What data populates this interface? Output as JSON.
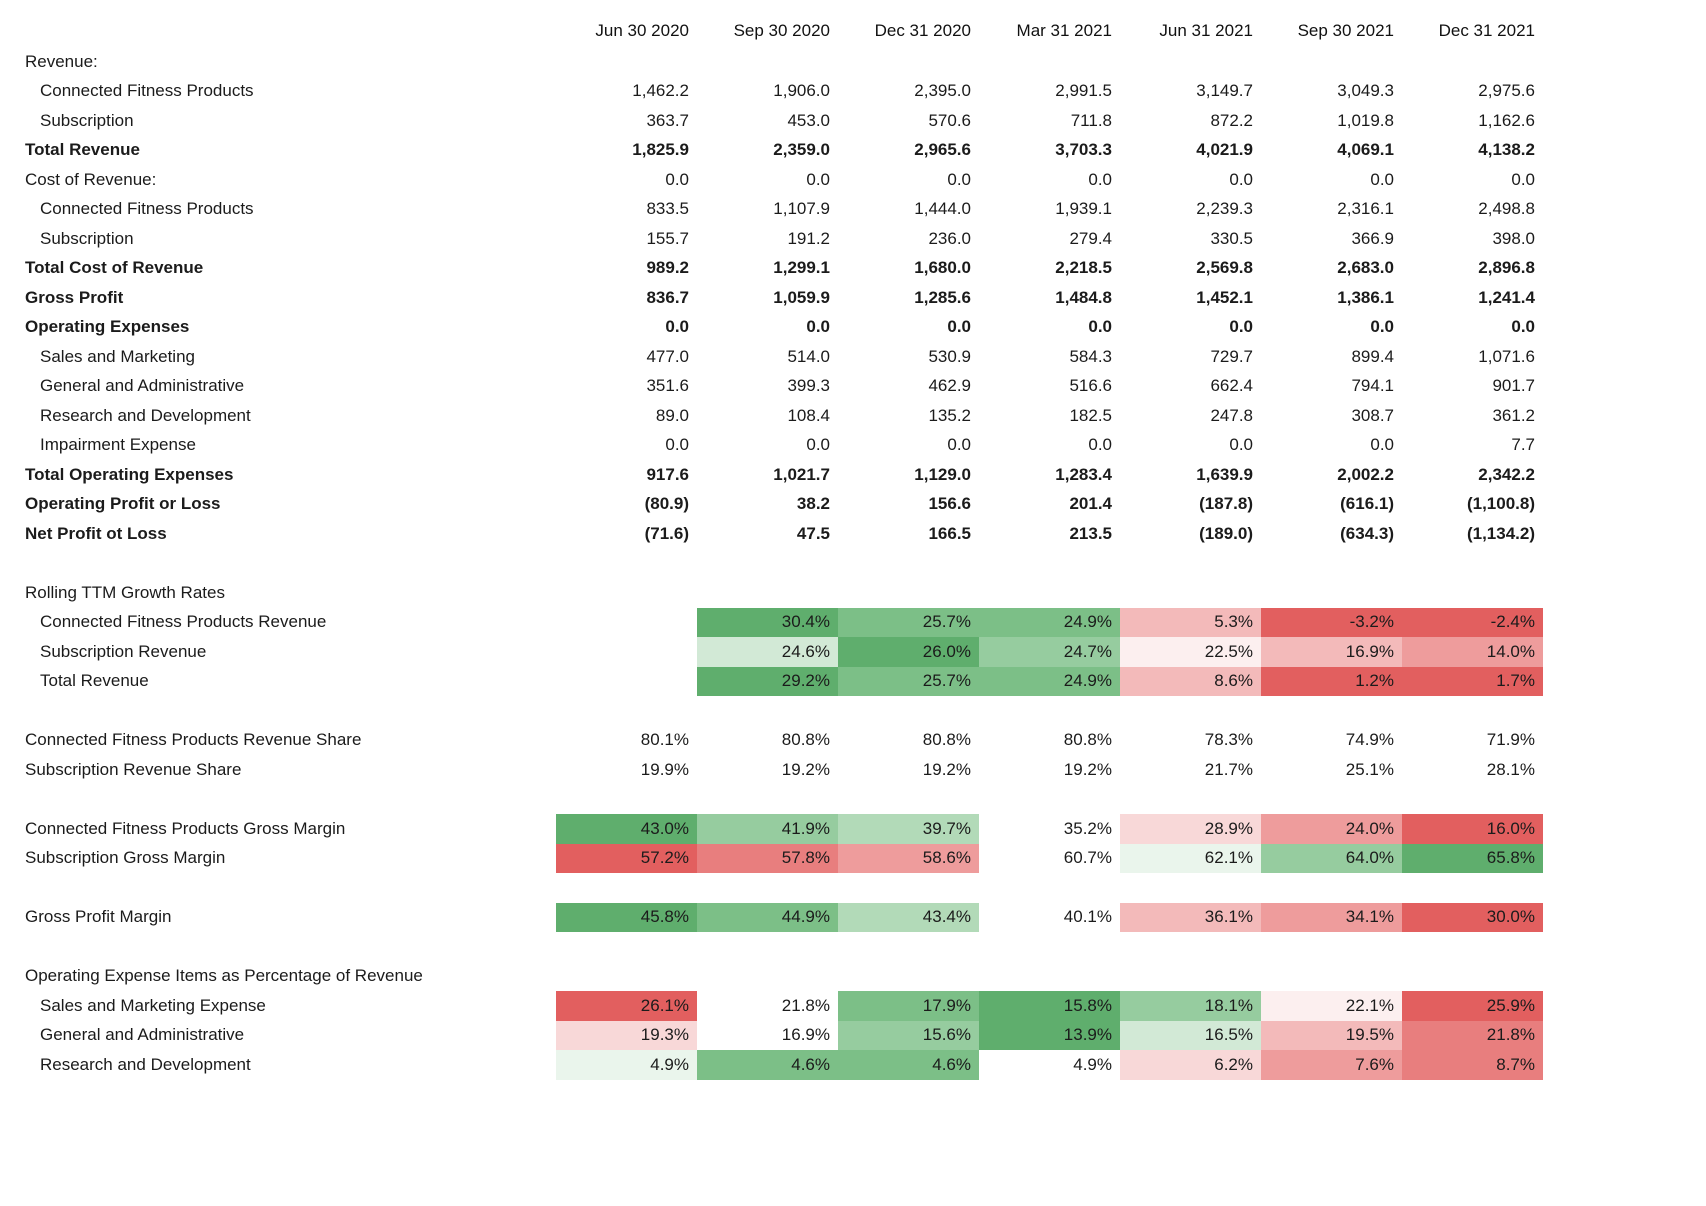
{
  "chart_data": {
    "type": "table",
    "title": "Quarterly financial statement with rolling TTM growth and margin heatmap",
    "heatmap_palette": {
      "green_strong": "#5fae6d",
      "green_medium": "#7cbf87",
      "green_light": "#96cc9f",
      "green_lighter": "#b2dab8",
      "green_pale": "#d2e9d6",
      "green_faint": "#eaf5ec",
      "red_strong": "#e25f5f",
      "red_medium": "#e87e7e",
      "red_light": "#ee9c9c",
      "red_lighter": "#f3baba",
      "red_pale": "#f8d8d8",
      "red_faint": "#fcefef"
    },
    "columns": [
      "Jun 30 2020",
      "Sep 30 2020",
      "Dec 31 2020",
      "Mar 31 2021",
      "Jun 31 2021",
      "Sep 30 2021",
      "Dec 31 2021"
    ],
    "rows": [
      {
        "label": "Revenue:",
        "style": "plain",
        "values": [
          "",
          "",
          "",
          "",
          "",
          "",
          ""
        ]
      },
      {
        "label": "Connected Fitness Products",
        "style": "indent",
        "values": [
          "1,462.2",
          "1,906.0",
          "2,395.0",
          "2,991.5",
          "3,149.7",
          "3,049.3",
          "2,975.6"
        ]
      },
      {
        "label": "Subscription",
        "style": "indent",
        "values": [
          "363.7",
          "453.0",
          "570.6",
          "711.8",
          "872.2",
          "1,019.8",
          "1,162.6"
        ]
      },
      {
        "label": "Total Revenue",
        "style": "bold",
        "values": [
          "1,825.9",
          "2,359.0",
          "2,965.6",
          "3,703.3",
          "4,021.9",
          "4,069.1",
          "4,138.2"
        ]
      },
      {
        "label": "Cost of Revenue:",
        "style": "plain",
        "values": [
          "0.0",
          "0.0",
          "0.0",
          "0.0",
          "0.0",
          "0.0",
          "0.0"
        ]
      },
      {
        "label": "Connected Fitness Products",
        "style": "indent",
        "values": [
          "833.5",
          "1,107.9",
          "1,444.0",
          "1,939.1",
          "2,239.3",
          "2,316.1",
          "2,498.8"
        ]
      },
      {
        "label": "Subscription",
        "style": "indent",
        "values": [
          "155.7",
          "191.2",
          "236.0",
          "279.4",
          "330.5",
          "366.9",
          "398.0"
        ]
      },
      {
        "label": "Total Cost of Revenue",
        "style": "bold",
        "values": [
          "989.2",
          "1,299.1",
          "1,680.0",
          "2,218.5",
          "2,569.8",
          "2,683.0",
          "2,896.8"
        ]
      },
      {
        "label": "Gross Profit",
        "style": "bold",
        "values": [
          "836.7",
          "1,059.9",
          "1,285.6",
          "1,484.8",
          "1,452.1",
          "1,386.1",
          "1,241.4"
        ]
      },
      {
        "label": "Operating Expenses",
        "style": "bold",
        "values": [
          "0.0",
          "0.0",
          "0.0",
          "0.0",
          "0.0",
          "0.0",
          "0.0"
        ]
      },
      {
        "label": "Sales and Marketing",
        "style": "indent",
        "values": [
          "477.0",
          "514.0",
          "530.9",
          "584.3",
          "729.7",
          "899.4",
          "1,071.6"
        ]
      },
      {
        "label": "General and Administrative",
        "style": "indent",
        "values": [
          "351.6",
          "399.3",
          "462.9",
          "516.6",
          "662.4",
          "794.1",
          "901.7"
        ]
      },
      {
        "label": "Research and Development",
        "style": "indent",
        "values": [
          "89.0",
          "108.4",
          "135.2",
          "182.5",
          "247.8",
          "308.7",
          "361.2"
        ]
      },
      {
        "label": "Impairment Expense",
        "style": "indent",
        "values": [
          "0.0",
          "0.0",
          "0.0",
          "0.0",
          "0.0",
          "0.0",
          "7.7"
        ]
      },
      {
        "label": "Total Operating Expenses",
        "style": "bold",
        "values": [
          "917.6",
          "1,021.7",
          "1,129.0",
          "1,283.4",
          "1,639.9",
          "2,002.2",
          "2,342.2"
        ]
      },
      {
        "label": "Operating Profit or Loss",
        "style": "bold",
        "values": [
          "(80.9)",
          "38.2",
          "156.6",
          "201.4",
          "(187.8)",
          "(616.1)",
          "(1,100.8)"
        ]
      },
      {
        "label": "Net Profit ot Loss",
        "style": "bold",
        "values": [
          "(71.6)",
          "47.5",
          "166.5",
          "213.5",
          "(189.0)",
          "(634.3)",
          "(1,134.2)"
        ]
      },
      {
        "label": "",
        "style": "spacer"
      },
      {
        "label": "Rolling TTM Growth Rates",
        "style": "plain",
        "values": [
          "",
          "",
          "",
          "",
          "",
          "",
          ""
        ]
      },
      {
        "label": "Connected Fitness Products Revenue",
        "style": "indent",
        "values": [
          "",
          "30.4%",
          "25.7%",
          "24.9%",
          "5.3%",
          "-3.2%",
          "-2.4%"
        ],
        "fills": [
          null,
          "#5fae6d",
          "#7cbf87",
          "#7cbf87",
          "#f3baba",
          "#e25f5f",
          "#e25f5f"
        ]
      },
      {
        "label": "Subscription Revenue",
        "style": "indent",
        "values": [
          "",
          "24.6%",
          "26.0%",
          "24.7%",
          "22.5%",
          "16.9%",
          "14.0%"
        ],
        "fills": [
          null,
          "#d2e9d6",
          "#5fae6d",
          "#96cc9f",
          "#fcefef",
          "#f3baba",
          "#ee9c9c"
        ]
      },
      {
        "label": "Total Revenue",
        "style": "indent",
        "values": [
          "",
          "29.2%",
          "25.7%",
          "24.9%",
          "8.6%",
          "1.2%",
          "1.7%"
        ],
        "fills": [
          null,
          "#5fae6d",
          "#7cbf87",
          "#7cbf87",
          "#f3baba",
          "#e25f5f",
          "#e25f5f"
        ]
      },
      {
        "label": "",
        "style": "spacer"
      },
      {
        "label": "Connected Fitness Products Revenue Share",
        "style": "plain",
        "values": [
          "80.1%",
          "80.8%",
          "80.8%",
          "80.8%",
          "78.3%",
          "74.9%",
          "71.9%"
        ]
      },
      {
        "label": "Subscription Revenue Share",
        "style": "plain",
        "values": [
          "19.9%",
          "19.2%",
          "19.2%",
          "19.2%",
          "21.7%",
          "25.1%",
          "28.1%"
        ]
      },
      {
        "label": "",
        "style": "spacer"
      },
      {
        "label": "Connected Fitness Products Gross Margin",
        "style": "plain",
        "values": [
          "43.0%",
          "41.9%",
          "39.7%",
          "35.2%",
          "28.9%",
          "24.0%",
          "16.0%"
        ],
        "fills": [
          "#5fae6d",
          "#96cc9f",
          "#b2dab8",
          null,
          "#f8d8d8",
          "#ee9c9c",
          "#e25f5f"
        ]
      },
      {
        "label": "Subscription Gross Margin",
        "style": "plain",
        "values": [
          "57.2%",
          "57.8%",
          "58.6%",
          "60.7%",
          "62.1%",
          "64.0%",
          "65.8%"
        ],
        "fills": [
          "#e25f5f",
          "#e87e7e",
          "#ee9c9c",
          null,
          "#eaf5ec",
          "#96cc9f",
          "#5fae6d"
        ]
      },
      {
        "label": "",
        "style": "spacer"
      },
      {
        "label": "Gross Profit Margin",
        "style": "plain",
        "values": [
          "45.8%",
          "44.9%",
          "43.4%",
          "40.1%",
          "36.1%",
          "34.1%",
          "30.0%"
        ],
        "fills": [
          "#5fae6d",
          "#7cbf87",
          "#b2dab8",
          null,
          "#f3baba",
          "#ee9c9c",
          "#e25f5f"
        ]
      },
      {
        "label": "",
        "style": "spacer"
      },
      {
        "label": "Operating Expense Items as Percentage of Revenue",
        "style": "plain",
        "values": [
          "",
          "",
          "",
          "",
          "",
          "",
          ""
        ]
      },
      {
        "label": "Sales and Marketing Expense",
        "style": "indent",
        "values": [
          "26.1%",
          "21.8%",
          "17.9%",
          "15.8%",
          "18.1%",
          "22.1%",
          "25.9%"
        ],
        "fills": [
          "#e25f5f",
          null,
          "#7cbf87",
          "#5fae6d",
          "#96cc9f",
          "#fcefef",
          "#e25f5f"
        ]
      },
      {
        "label": "General and Administrative",
        "style": "indent",
        "values": [
          "19.3%",
          "16.9%",
          "15.6%",
          "13.9%",
          "16.5%",
          "19.5%",
          "21.8%"
        ],
        "fills": [
          "#f8d8d8",
          null,
          "#96cc9f",
          "#5fae6d",
          "#d2e9d6",
          "#f3baba",
          "#e87e7e"
        ]
      },
      {
        "label": "Research and Development",
        "style": "indent",
        "values": [
          "4.9%",
          "4.6%",
          "4.6%",
          "4.9%",
          "6.2%",
          "7.6%",
          "8.7%"
        ],
        "fills": [
          "#eaf5ec",
          "#7cbf87",
          "#7cbf87",
          null,
          "#f8d8d8",
          "#ee9c9c",
          "#e87e7e"
        ]
      }
    ]
  }
}
